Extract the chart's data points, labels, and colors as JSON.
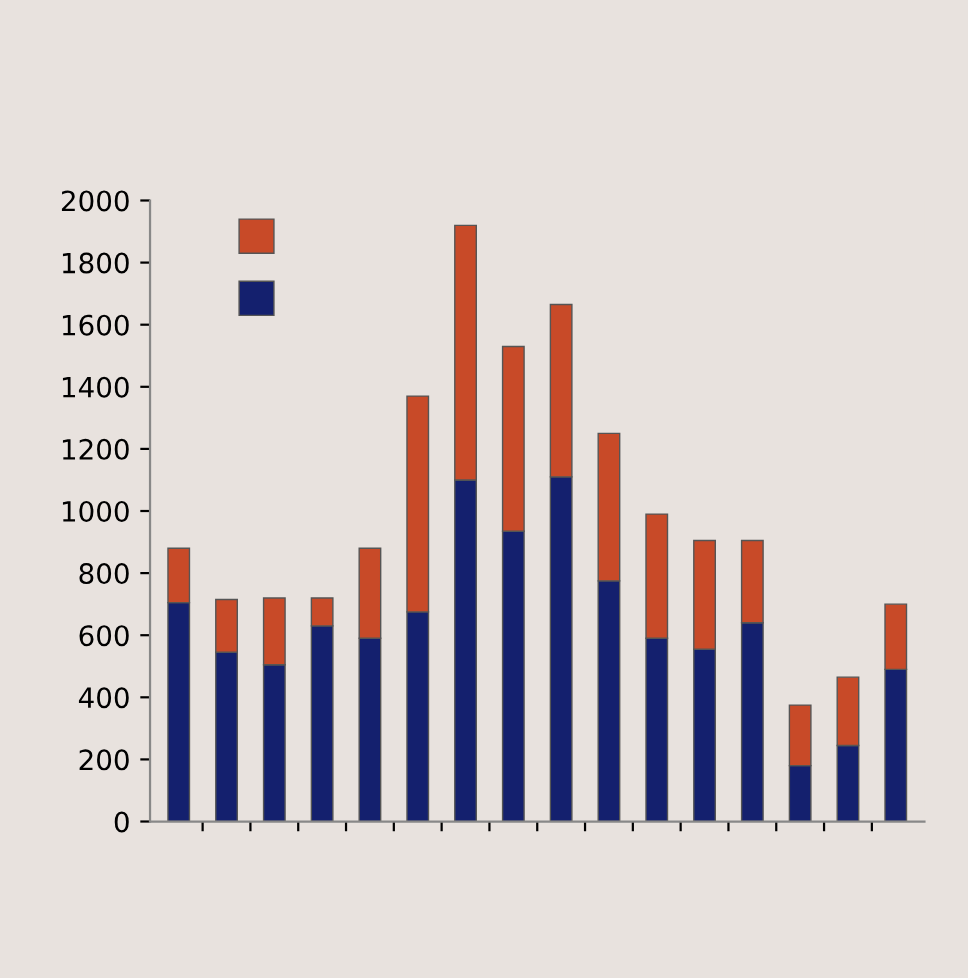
{
  "chart_data": {
    "type": "bar",
    "stacked": true,
    "categories": [
      null,
      null,
      null,
      null,
      null,
      null,
      null,
      null,
      null,
      null,
      null,
      null,
      null,
      null,
      null,
      null
    ],
    "series": [
      {
        "color": "#14206e",
        "values": [
          705,
          545,
          505,
          630,
          590,
          675,
          1100,
          935,
          1110,
          775,
          590,
          555,
          640,
          180,
          245,
          490
        ]
      },
      {
        "color": "#c84a28",
        "values": [
          175,
          170,
          215,
          90,
          290,
          695,
          820,
          595,
          555,
          475,
          400,
          350,
          265,
          195,
          220,
          210
        ]
      }
    ],
    "ylim": [
      0,
      2000
    ],
    "yticks": [
      0,
      200,
      400,
      600,
      800,
      1000,
      1200,
      1400,
      1600,
      1800,
      2000
    ],
    "grid": false
  }
}
